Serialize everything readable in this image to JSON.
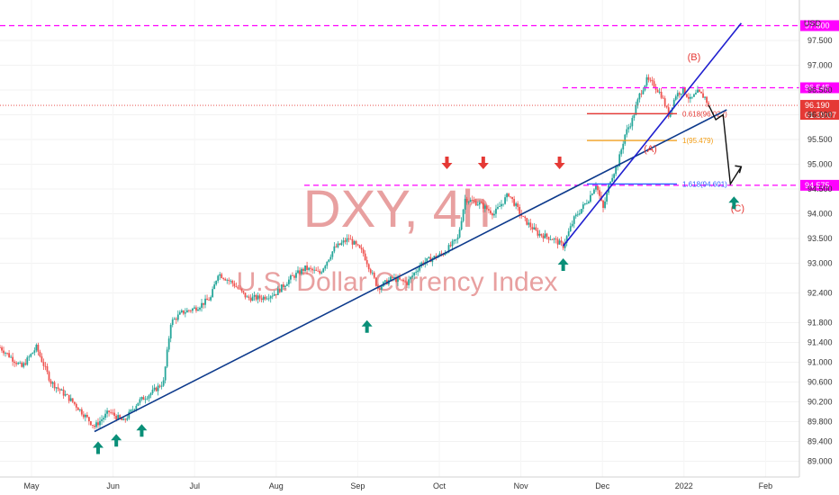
{
  "chart_data": {
    "type": "candlestick",
    "watermark": {
      "symbol": "DXY, 4h",
      "name": "U.S. Dollar Currency Index"
    },
    "currency_label": "USD",
    "x_tick_labels": [
      "May",
      "Jun",
      "Jul",
      "Aug",
      "Sep",
      "Oct",
      "Nov",
      "Dec",
      "2022",
      "Feb"
    ],
    "y_tick_labels": [
      "97.500",
      "97.000",
      "96.500",
      "96.000",
      "95.500",
      "95.000",
      "94.500",
      "94.000",
      "93.500",
      "93.000",
      "92.400",
      "91.800",
      "91.400",
      "91.000",
      "90.600",
      "90.200",
      "89.800",
      "89.400",
      "89.000"
    ],
    "ylim": [
      88.9,
      97.9
    ],
    "price_waypoints": [
      [
        0,
        91.3
      ],
      [
        3,
        90.9
      ],
      [
        5,
        91.3
      ],
      [
        7,
        90.6
      ],
      [
        10,
        90.2
      ],
      [
        13,
        89.7
      ],
      [
        15,
        90.0
      ],
      [
        17,
        89.8
      ],
      [
        19,
        90.2
      ],
      [
        21,
        90.4
      ],
      [
        22.5,
        90.6
      ],
      [
        23.5,
        91.8
      ],
      [
        25,
        92.0
      ],
      [
        27,
        92.1
      ],
      [
        29,
        92.3
      ],
      [
        30,
        92.8
      ],
      [
        32,
        92.6
      ],
      [
        34,
        92.3
      ],
      [
        36,
        92.3
      ],
      [
        38,
        92.4
      ],
      [
        40,
        92.7
      ],
      [
        42,
        92.9
      ],
      [
        44,
        92.8
      ],
      [
        46,
        93.3
      ],
      [
        48,
        93.5
      ],
      [
        50,
        93.2
      ],
      [
        52,
        92.5
      ],
      [
        54,
        92.7
      ],
      [
        56,
        92.6
      ],
      [
        58,
        93.0
      ],
      [
        61,
        93.2
      ],
      [
        63,
        93.5
      ],
      [
        64,
        94.3
      ],
      [
        66,
        94.2
      ],
      [
        68,
        94.0
      ],
      [
        70,
        94.4
      ],
      [
        72,
        93.9
      ],
      [
        74,
        93.6
      ],
      [
        76,
        93.5
      ],
      [
        77.5,
        93.35
      ],
      [
        79,
        93.9
      ],
      [
        81,
        94.3
      ],
      [
        82,
        94.6
      ],
      [
        83,
        94.1
      ],
      [
        84,
        94.7
      ],
      [
        85,
        95.0
      ],
      [
        86,
        95.6
      ],
      [
        87,
        95.9
      ],
      [
        88,
        96.4
      ],
      [
        89,
        96.7
      ],
      [
        90,
        96.6
      ],
      [
        91,
        96.4
      ],
      [
        92,
        96.0
      ],
      [
        93,
        96.4
      ],
      [
        94,
        96.5
      ],
      [
        95,
        96.3
      ],
      [
        96,
        96.45
      ],
      [
        97,
        96.35
      ],
      [
        97.5,
        96.19
      ]
    ],
    "horizontal_levels": [
      {
        "price": 97.8,
        "label": "97.800",
        "color": "#ff00ff",
        "style": "dashed"
      },
      {
        "price": 96.545,
        "label": "96.545",
        "color": "#ff00ff",
        "style": "dashed"
      },
      {
        "price": 94.575,
        "label": "94.575",
        "color": "#ff00ff",
        "style": "dashed"
      },
      {
        "price": 96.19,
        "label": "96.190",
        "sublabel": "01:39:07",
        "color": "#e53935",
        "style": "dotted"
      }
    ],
    "fib_levels": [
      {
        "price": 96.022,
        "label": "0.618(96.022)",
        "color": "#e53935"
      },
      {
        "price": 95.479,
        "label": "1(95.479)",
        "color": "#f39c12"
      },
      {
        "price": 94.601,
        "label": "1.618(94.601)",
        "color": "#2962ff"
      }
    ],
    "trendlines": [
      {
        "from": [
          13,
          89.6
        ],
        "to": [
          100,
          96.1
        ],
        "color": "#0d3a8c"
      },
      {
        "from": [
          77.5,
          93.35
        ],
        "to": [
          102,
          97.85
        ],
        "color": "#1f1fcf"
      }
    ],
    "wave_labels": [
      {
        "label": "(A)",
        "x": 89.5,
        "price": 95.25
      },
      {
        "label": "(B)",
        "x": 95.5,
        "price": 97.1
      },
      {
        "label": "(C)",
        "x": 101.5,
        "price": 94.05
      }
    ],
    "projection_path": [
      [
        97.5,
        96.2
      ],
      [
        98.5,
        95.9
      ],
      [
        99.5,
        96.0
      ],
      [
        100.5,
        94.6
      ],
      [
        102,
        94.95
      ]
    ],
    "up_arrows": [
      [
        13.5,
        89.4
      ],
      [
        16,
        89.55
      ],
      [
        19.5,
        89.75
      ],
      [
        50.5,
        91.85
      ],
      [
        77.5,
        93.1
      ],
      [
        101,
        94.35
      ]
    ],
    "down_arrows": [
      [
        61.5,
        94.9
      ],
      [
        66.5,
        94.9
      ],
      [
        77,
        94.9
      ]
    ]
  }
}
